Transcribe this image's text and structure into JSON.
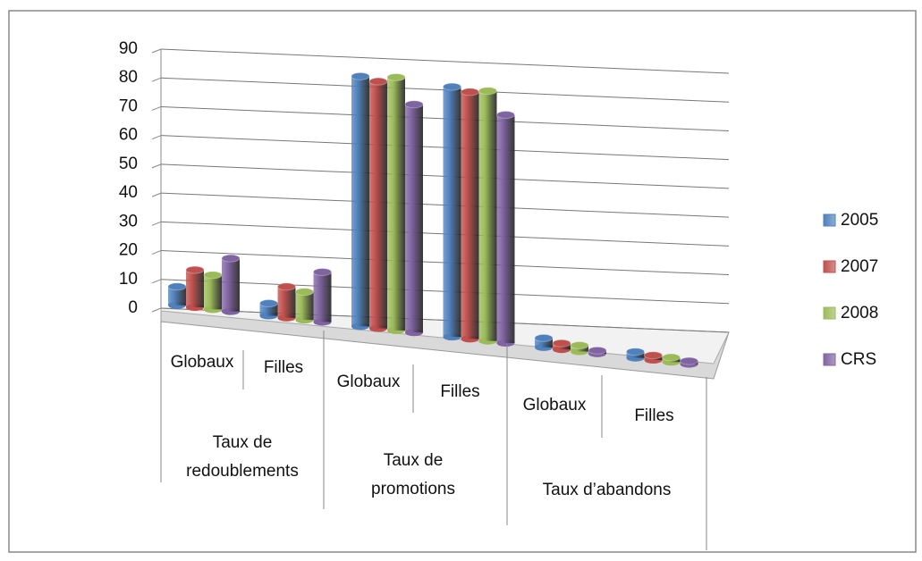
{
  "chart_data": {
    "type": "bar3d",
    "category_groups": [
      {
        "label": "Taux de redoublements",
        "categories": [
          "Globaux",
          "Filles"
        ]
      },
      {
        "label": "Taux de promotions",
        "categories": [
          "Globaux",
          "Filles"
        ]
      },
      {
        "label": "Taux d’abandons",
        "categories": [
          "Globaux",
          "Filles"
        ]
      }
    ],
    "series": [
      {
        "name": "2005",
        "color": "#4f81bd",
        "values": [
          6,
          4,
          80,
          80,
          3,
          2
        ]
      },
      {
        "name": "2007",
        "color": "#c0504d",
        "values": [
          12,
          10,
          79,
          79,
          2,
          1.5
        ]
      },
      {
        "name": "2008",
        "color": "#9bbb59",
        "values": [
          11,
          9,
          81,
          80,
          2,
          1.5
        ]
      },
      {
        "name": "CRS",
        "color": "#8064a2",
        "values": [
          17,
          16,
          73,
          73,
          1,
          1
        ]
      }
    ],
    "ylim": [
      0,
      90
    ],
    "yticks": [
      0,
      10,
      20,
      30,
      40,
      50,
      60,
      70,
      80,
      90
    ],
    "grid": true,
    "legend": "right"
  }
}
